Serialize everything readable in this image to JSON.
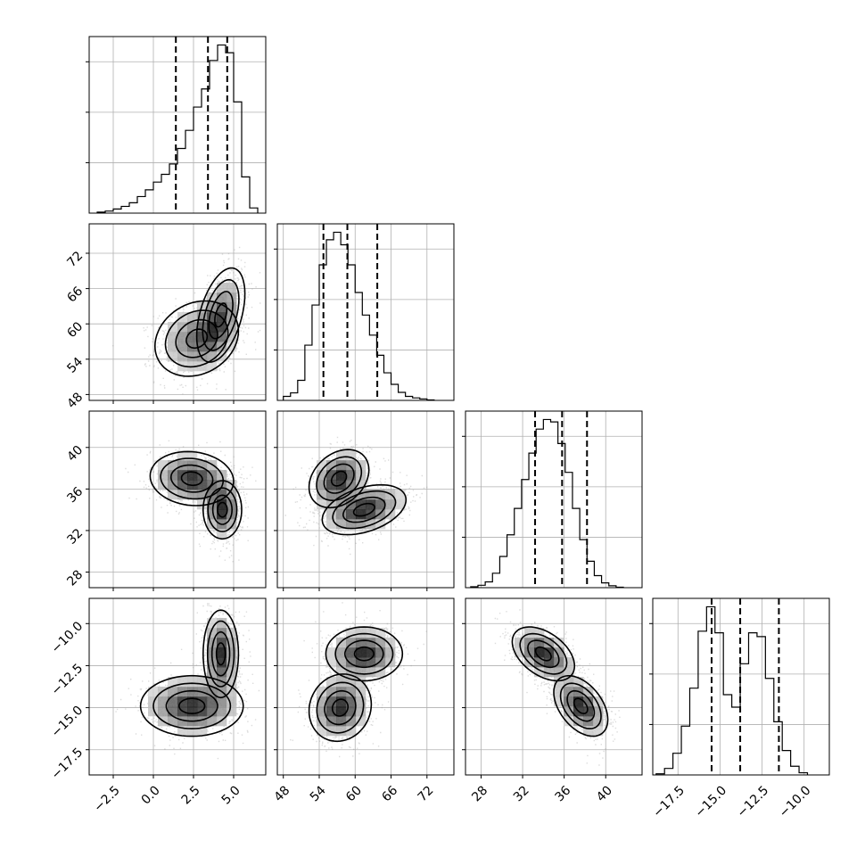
{
  "chart_data": {
    "type": "corner",
    "title": "",
    "grid": true,
    "parameters": [
      {
        "index": 0,
        "xlim": [
          -4,
          7
        ],
        "ylim_in_2d": [
          47,
          77
        ],
        "ticks": [
          -2.5,
          0.0,
          2.5,
          5.0
        ],
        "tick_labels": [
          "−2.5",
          "0.0",
          "2.5",
          "5.0"
        ],
        "quantiles": [
          1.4,
          3.4,
          4.6
        ],
        "hist": {
          "edges_start": -3.5,
          "bin_width": 0.5,
          "counts": [
            2,
            4,
            8,
            13,
            20,
            32,
            45,
            60,
            75,
            95,
            125,
            160,
            205,
            240,
            295,
            325,
            310,
            215,
            70,
            10
          ]
        }
      },
      {
        "index": 1,
        "xlim": [
          47,
          76.5
        ],
        "ylim_in_2d": [
          47,
          77
        ],
        "ticks": [
          48,
          54,
          60,
          66,
          72
        ],
        "tick_labels": [
          "48",
          "54",
          "60",
          "66",
          "72"
        ],
        "quantiles": [
          54.7,
          58.7,
          63.7
        ],
        "hist": {
          "edges_start": 48,
          "bin_width": 1.2,
          "counts": [
            8,
            15,
            40,
            110,
            190,
            270,
            320,
            335,
            310,
            270,
            215,
            170,
            130,
            90,
            55,
            32,
            16,
            8,
            5,
            3,
            1
          ]
        }
      },
      {
        "index": 2,
        "xlim": [
          26.5,
          43.5
        ],
        "ylim_in_2d": [
          26.5,
          43.5
        ],
        "ticks": [
          28,
          32,
          36,
          40
        ],
        "tick_labels": [
          "28",
          "32",
          "36",
          "40"
        ],
        "quantiles": [
          33.2,
          35.8,
          38.2
        ],
        "hist": {
          "edges_start": 27,
          "bin_width": 0.7,
          "counts": [
            2,
            5,
            12,
            30,
            65,
            110,
            165,
            225,
            280,
            330,
            350,
            345,
            300,
            240,
            165,
            100,
            55,
            25,
            10,
            4,
            1
          ]
        }
      },
      {
        "index": 3,
        "xlim": [
          -19.0,
          -8.5
        ],
        "ylim_in_2d": [
          -19.0,
          -8.5
        ],
        "ticks": [
          -17.5,
          -15.0,
          -12.5,
          -10.0
        ],
        "tick_labels": [
          "−17.5",
          "−15.0",
          "−12.5",
          "−10.0"
        ],
        "quantiles": [
          -15.5,
          -13.8,
          -11.5
        ],
        "hist": {
          "edges_start": -18.8,
          "bin_width": 0.5,
          "counts": [
            2,
            12,
            40,
            90,
            160,
            265,
            310,
            262,
            148,
            125,
            205,
            262,
            255,
            178,
            98,
            45,
            16,
            4
          ]
        }
      }
    ],
    "y_axis_tick_labels": {
      "row1": [
        "48",
        "54",
        "60",
        "66",
        "72"
      ],
      "row2": [
        "28",
        "32",
        "36",
        "40"
      ],
      "row3": [
        "−17.5",
        "−15.0",
        "−12.5",
        "−10.0"
      ]
    },
    "pairs": [
      {
        "x": 0,
        "y": 1,
        "modes": [
          {
            "cx": 2.7,
            "cy": 57.5,
            "sx": 1.3,
            "sy": 3.2,
            "rho": 0.2
          },
          {
            "cx": 4.2,
            "cy": 61.5,
            "sx": 0.75,
            "sy": 4.0,
            "rho": 0.45
          }
        ]
      },
      {
        "x": 0,
        "y": 2,
        "modes": [
          {
            "cx": 2.4,
            "cy": 37.0,
            "sx": 1.3,
            "sy": 1.3,
            "rho": -0.1
          },
          {
            "cx": 4.3,
            "cy": 34.0,
            "sx": 0.6,
            "sy": 1.4,
            "rho": 0.0
          }
        ]
      },
      {
        "x": 1,
        "y": 2,
        "modes": [
          {
            "cx": 57.3,
            "cy": 37.0,
            "sx": 2.5,
            "sy": 1.4,
            "rho": 0.3
          },
          {
            "cx": 61.5,
            "cy": 34.0,
            "sx": 3.5,
            "sy": 1.2,
            "rho": 0.4
          }
        ]
      },
      {
        "x": 0,
        "y": 3,
        "modes": [
          {
            "cx": 2.4,
            "cy": -14.9,
            "sx": 1.6,
            "sy": 0.9,
            "rho": 0.0
          },
          {
            "cx": 4.2,
            "cy": -11.8,
            "sx": 0.55,
            "sy": 1.3,
            "rho": 0.0
          }
        ]
      },
      {
        "x": 1,
        "y": 3,
        "modes": [
          {
            "cx": 57.5,
            "cy": -15.0,
            "sx": 2.6,
            "sy": 1.0,
            "rho": 0.1
          },
          {
            "cx": 61.5,
            "cy": -11.8,
            "sx": 3.2,
            "sy": 0.8,
            "rho": 0.0
          }
        ]
      },
      {
        "x": 2,
        "y": 3,
        "modes": [
          {
            "cx": 34.0,
            "cy": -11.8,
            "sx": 1.5,
            "sy": 0.8,
            "rho": -0.45
          },
          {
            "cx": 37.6,
            "cy": -14.9,
            "sx": 1.3,
            "sy": 0.9,
            "rho": -0.45
          }
        ]
      }
    ],
    "contour_levels_sigma": [
      0.5,
      1.0,
      1.5,
      2.0
    ]
  }
}
